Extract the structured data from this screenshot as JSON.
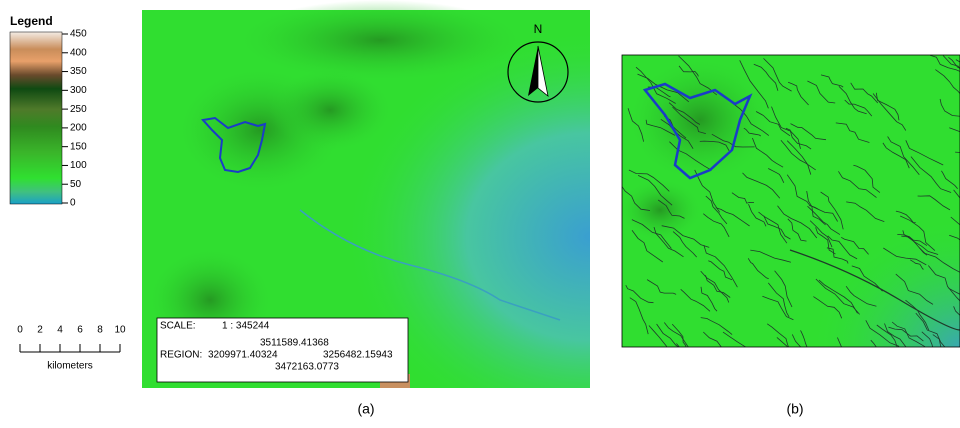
{
  "legend": {
    "title": "Legend",
    "ticks": [
      450,
      400,
      350,
      300,
      250,
      200,
      150,
      100,
      50,
      0
    ]
  },
  "scale_bar": {
    "ticks": [
      0,
      2,
      4,
      6,
      8,
      10
    ],
    "unit": "kilometers"
  },
  "panels": [
    {
      "label": "(a)",
      "north": "N",
      "scale_label": "SCALE:",
      "scale": "1 : 345244",
      "region_label": "REGION:",
      "region_top": "3511589.41368",
      "region_left": "3209971.40324",
      "region_right": "3256482.15943",
      "region_bottom": "3472163.0773"
    },
    {
      "label": "(b)"
    }
  ]
}
